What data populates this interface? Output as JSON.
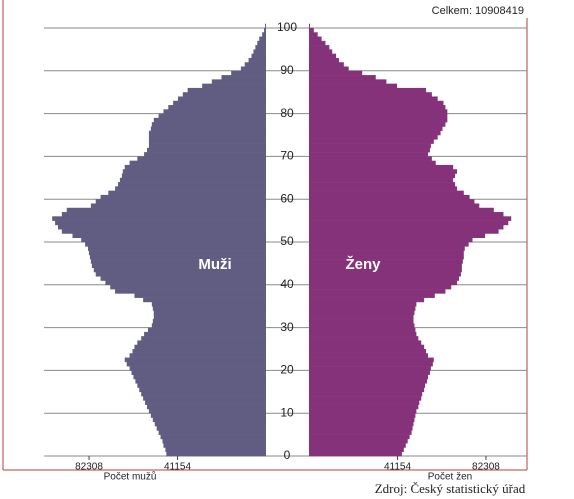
{
  "chart_data": {
    "type": "pyramid",
    "total_label": "Celkem: 10908419",
    "source": "Zdroj: Český statistický úřad",
    "y": [
      0,
      1,
      2,
      3,
      4,
      5,
      6,
      7,
      8,
      9,
      10,
      11,
      12,
      13,
      14,
      15,
      16,
      17,
      18,
      19,
      20,
      21,
      22,
      23,
      24,
      25,
      26,
      27,
      28,
      29,
      30,
      31,
      32,
      33,
      34,
      35,
      36,
      37,
      38,
      39,
      40,
      41,
      42,
      43,
      44,
      45,
      46,
      47,
      48,
      49,
      50,
      51,
      52,
      53,
      54,
      55,
      56,
      57,
      58,
      59,
      60,
      61,
      62,
      63,
      64,
      65,
      66,
      67,
      68,
      69,
      70,
      71,
      72,
      73,
      74,
      75,
      76,
      77,
      78,
      79,
      80,
      81,
      82,
      83,
      84,
      85,
      86,
      87,
      88,
      89,
      90,
      91,
      92,
      93,
      94,
      95,
      96,
      97,
      98,
      99,
      100
    ],
    "ylim": [
      0,
      100
    ],
    "yticks": [
      0,
      10,
      20,
      30,
      40,
      50,
      60,
      70,
      80,
      90,
      100
    ],
    "grid": true,
    "series": [
      {
        "name": "Muži",
        "color": "#615d82",
        "side": "left",
        "xlabel": "Počet mužů",
        "xlim": [
          0,
          100000
        ],
        "xticks": [
          41154,
          82308
        ],
        "values": [
          46350,
          46800,
          47700,
          48150,
          49050,
          49950,
          50850,
          51750,
          52650,
          53550,
          54450,
          55350,
          56250,
          57150,
          58050,
          58950,
          59850,
          60750,
          61650,
          62550,
          63450,
          64800,
          65700,
          63450,
          62100,
          61200,
          59850,
          58050,
          56700,
          54900,
          53100,
          52650,
          52200,
          52200,
          52650,
          53100,
          57150,
          61200,
          70200,
          72450,
          74700,
          76950,
          79200,
          80100,
          81000,
          81450,
          81900,
          82350,
          82800,
          84150,
          85950,
          90000,
          94950,
          96750,
          98100,
          99450,
          94950,
          92700,
          81450,
          79200,
          76950,
          73350,
          70200,
          68850,
          67950,
          67050,
          66600,
          65700,
          63450,
          59850,
          56700,
          55350,
          54450,
          54450,
          54450,
          54450,
          53550,
          53100,
          52200,
          49950,
          47700,
          45450,
          43200,
          40950,
          38700,
          36450,
          29700,
          25200,
          20700,
          16200,
          11700,
          9900,
          8100,
          6750,
          5850,
          4950,
          4050,
          3150,
          1800,
          900,
          450
        ]
      },
      {
        "name": "Ženy",
        "color": "#86327b",
        "side": "right",
        "xlabel": "Počet žen",
        "xlim": [
          0,
          100000
        ],
        "xticks": [
          41154,
          82308
        ],
        "values": [
          43200,
          44100,
          45000,
          45900,
          46800,
          47700,
          48150,
          48600,
          49050,
          49500,
          49950,
          50850,
          51300,
          52200,
          52650,
          53550,
          54000,
          54900,
          55350,
          56250,
          56700,
          57600,
          58050,
          55350,
          54450,
          53550,
          52200,
          50850,
          49950,
          49500,
          49050,
          48600,
          48600,
          49050,
          49500,
          49950,
          53550,
          58500,
          63450,
          66150,
          68850,
          69750,
          70650,
          71100,
          71100,
          71550,
          72000,
          72000,
          72450,
          74250,
          76050,
          81900,
          88200,
          90450,
          92700,
          94050,
          90450,
          85950,
          79200,
          76950,
          74700,
          72000,
          68850,
          67950,
          67050,
          67950,
          68850,
          67050,
          58950,
          57150,
          55350,
          56250,
          56700,
          58050,
          59850,
          61200,
          62100,
          63450,
          64350,
          64350,
          64350,
          63450,
          62550,
          59850,
          57150,
          54450,
          40950,
          36000,
          31050,
          24750,
          18450,
          16200,
          13950,
          12600,
          10800,
          9450,
          7650,
          5850,
          4050,
          2250,
          450
        ]
      }
    ]
  }
}
